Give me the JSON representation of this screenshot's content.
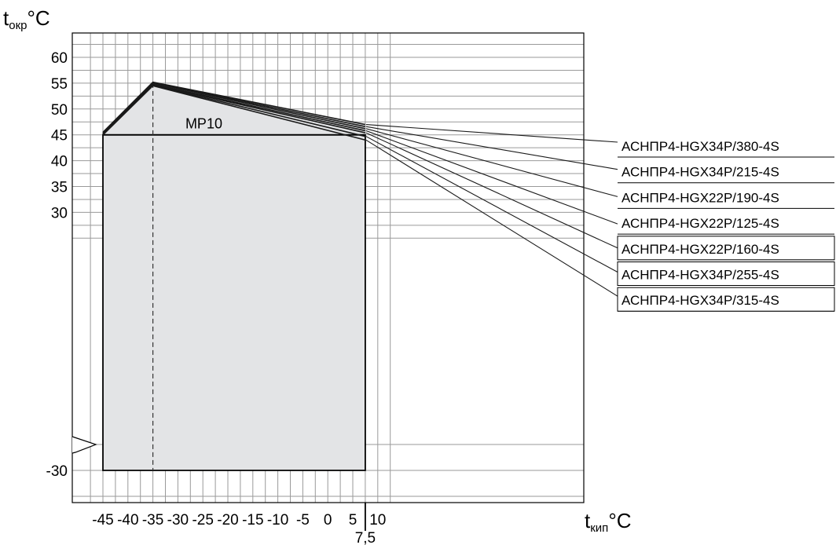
{
  "chart_data": {
    "type": "line",
    "x_label": {
      "main": "t",
      "sub": "кип",
      "unit": "°C"
    },
    "y_label": {
      "main": "t",
      "sub": "окр",
      "unit": "°C"
    },
    "x_ticks": [
      -45,
      -40,
      -35,
      -30,
      -25,
      -20,
      -15,
      -10,
      -5,
      0,
      5,
      10
    ],
    "x_extra_tick": {
      "value": 7.5,
      "label": "7,5"
    },
    "y_ticks_upper": [
      30,
      35,
      40,
      45,
      50,
      55,
      60
    ],
    "y_tick_lower": -30,
    "y_break": true,
    "region": {
      "name": "MP10",
      "points": [
        [
          -45,
          -30
        ],
        [
          -45,
          45
        ],
        [
          7.5,
          45
        ],
        [
          7.5,
          -30
        ]
      ]
    },
    "dashed_reference_x": -35,
    "series": [
      {
        "name": "АСНПР4-HGX34P/380-4S",
        "points": [
          [
            -45,
            45.5
          ],
          [
            -35,
            55.2
          ],
          [
            7.5,
            47.0
          ]
        ]
      },
      {
        "name": "АСНПР4-HGX34P/215-4S",
        "points": [
          [
            -45,
            45.4
          ],
          [
            -35,
            55.1
          ],
          [
            7.5,
            46.6
          ]
        ]
      },
      {
        "name": "АСНПР4-HGX22P/190-4S",
        "points": [
          [
            -45,
            45.3
          ],
          [
            -35,
            55.0
          ],
          [
            7.5,
            46.2
          ]
        ]
      },
      {
        "name": "АСНПР4-HGX22P/125-4S",
        "points": [
          [
            -45,
            45.2
          ],
          [
            -35,
            54.8
          ],
          [
            7.5,
            45.8
          ]
        ]
      },
      {
        "name": "АСНПР4-HGX22P/160-4S",
        "points": [
          [
            -45,
            45.1
          ],
          [
            -35,
            54.7
          ],
          [
            7.5,
            45.4
          ]
        ]
      },
      {
        "name": "АСНПР4-HGX34P/255-4S",
        "points": [
          [
            -45,
            45.0
          ],
          [
            -35,
            54.6
          ],
          [
            7.5,
            44.7
          ]
        ]
      },
      {
        "name": "АСНПР4-HGX34P/315-4S",
        "points": [
          [
            -45,
            45.0
          ],
          [
            -35,
            54.5
          ],
          [
            7.5,
            44.0
          ]
        ]
      }
    ],
    "legend_placement": "right",
    "grid": true
  }
}
